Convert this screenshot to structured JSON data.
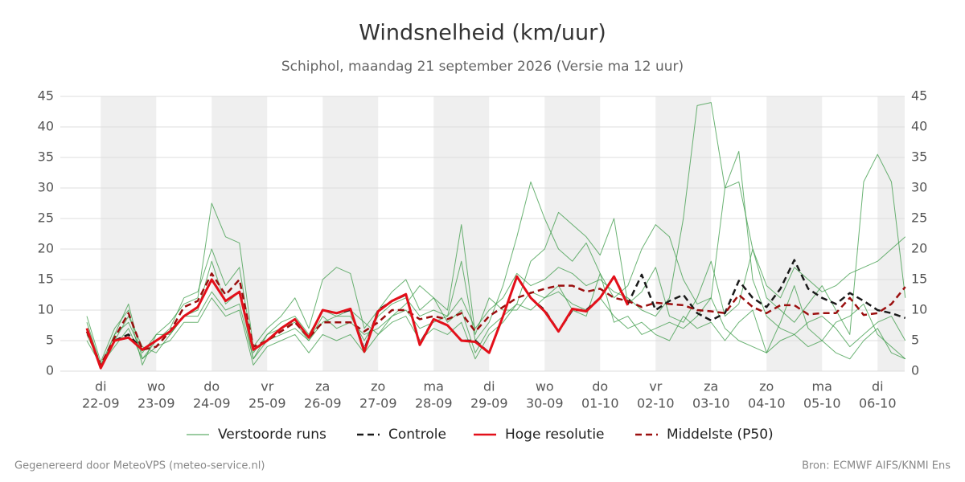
{
  "chart_data": {
    "type": "line",
    "title": "Windsnelheid (km/uur)",
    "subtitle": "Schiphol, maandag 21 september 2026 (Versie ma 12 uur)",
    "footer_left": "Gegenereerd door MeteoVPS (meteo-service.nl)",
    "footer_right": "Bron: ECMWF AIFS/KNMI Ens",
    "categories": [
      null,
      "22-09",
      null,
      null,
      null,
      "23-09",
      null,
      null,
      null,
      "24-09",
      null,
      null,
      null,
      "25-09",
      null,
      null,
      null,
      "26-09",
      null,
      null,
      null,
      "27-09",
      null,
      null,
      null,
      "28-09",
      null,
      null,
      null,
      "29-09",
      null,
      null,
      null,
      "30-09",
      null,
      null,
      null,
      "01-10",
      null,
      null,
      null,
      "02-10",
      null,
      null,
      null,
      "03-10",
      null,
      null,
      null,
      "04-10",
      null,
      null,
      null,
      "05-10",
      null,
      null,
      null,
      "06-10",
      null,
      null
    ],
    "weekdays": [
      null,
      "di",
      null,
      null,
      null,
      "wo",
      null,
      null,
      null,
      "do",
      null,
      null,
      null,
      "vr",
      null,
      null,
      null,
      "za",
      null,
      null,
      null,
      "zo",
      null,
      null,
      null,
      "ma",
      null,
      null,
      null,
      "di",
      null,
      null,
      null,
      "wo",
      null,
      null,
      null,
      "do",
      null,
      null,
      null,
      "vr",
      null,
      null,
      null,
      "za",
      null,
      null,
      null,
      "zo",
      null,
      null,
      null,
      "ma",
      null,
      null,
      null,
      "di",
      null,
      null
    ],
    "ylim": [
      0,
      45
    ],
    "yticks": [
      0,
      5,
      10,
      15,
      20,
      25,
      30,
      35,
      40,
      45
    ],
    "grid": true,
    "ensemble": {
      "name": "Verstoorde runs",
      "color": "#3a9a45",
      "members": [
        [
          8,
          1,
          6,
          11,
          2,
          5,
          7,
          12,
          13,
          20,
          14,
          17,
          3,
          6,
          8,
          9,
          6,
          10,
          9,
          9,
          5,
          9,
          11,
          12,
          9,
          10,
          9,
          12,
          7,
          10,
          12,
          16,
          14,
          15,
          17,
          16,
          14,
          15,
          13,
          12,
          10,
          9,
          12,
          25,
          43.5,
          44,
          30,
          31,
          20,
          14,
          12,
          17,
          15,
          13,
          14,
          16,
          17,
          18,
          20,
          22
        ],
        [
          6,
          1,
          5,
          9,
          4,
          3,
          6,
          9,
          10,
          18,
          11,
          13,
          2,
          5,
          6,
          7,
          5,
          9,
          7,
          8,
          6,
          7,
          9,
          10,
          7,
          8,
          9,
          18,
          5,
          8,
          14,
          22,
          31,
          25,
          20,
          18,
          21,
          16,
          12,
          14,
          20,
          24,
          22,
          15,
          11,
          12,
          7,
          5,
          4,
          3,
          8,
          14,
          7,
          5,
          8,
          9,
          11,
          6,
          4,
          2
        ],
        [
          7,
          0.5,
          6,
          8,
          3,
          6,
          8,
          11,
          12,
          27.5,
          22,
          21,
          4,
          7,
          9,
          12,
          7,
          15,
          17,
          16,
          7,
          10,
          13,
          15,
          10,
          12,
          8,
          10,
          3,
          7,
          9,
          11,
          18,
          20,
          26,
          24,
          22,
          19,
          25,
          11,
          13,
          17,
          9,
          8,
          12,
          18,
          9,
          11,
          20,
          12,
          10,
          8,
          11,
          14,
          10,
          6,
          31,
          35.5,
          31,
          12
        ],
        [
          9,
          1.5,
          7,
          10,
          1,
          6,
          6,
          9,
          9,
          13,
          10,
          11,
          2,
          6,
          7,
          8,
          5,
          8,
          9,
          10,
          8,
          6,
          9,
          11,
          14,
          12,
          10,
          24,
          6,
          12,
          10,
          10,
          13,
          12,
          14,
          10,
          9,
          16,
          8,
          9,
          6,
          7,
          8,
          7,
          9,
          12,
          30,
          36,
          15,
          9,
          7,
          6,
          8,
          9,
          7,
          4,
          6,
          8,
          9,
          5
        ],
        [
          5,
          1,
          4,
          7,
          2,
          4,
          5,
          8,
          8,
          12,
          9,
          10,
          1,
          4,
          5,
          6,
          3,
          6,
          5,
          6,
          3,
          6,
          8,
          9,
          5,
          7,
          6,
          8,
          2,
          6,
          8,
          11,
          10,
          12,
          13,
          11,
          10,
          12,
          9,
          7,
          8,
          6,
          5,
          9,
          7,
          8,
          5,
          8,
          10,
          3,
          5,
          6,
          4,
          5,
          3,
          2,
          5,
          7,
          3,
          2
        ]
      ]
    },
    "series": [
      {
        "name": "Controle",
        "color": "#1a1a1a",
        "dash": "dashed",
        "values": [
          7,
          0.5,
          5,
          6,
          3.5,
          5,
          6.5,
          9,
          10.5,
          15,
          11.5,
          13,
          3.5,
          5,
          7,
          8.5,
          5.5,
          10,
          9.5,
          10,
          3.5,
          10,
          11.5,
          12.5,
          4.5,
          8.5,
          7.5,
          5,
          5,
          3,
          9,
          15.5,
          12,
          10,
          6.5,
          10,
          10,
          12,
          15.5,
          11,
          15.8,
          10,
          11.5,
          12.5,
          9.5,
          8.3,
          9.5,
          14.8,
          12,
          10.5,
          13.5,
          18.2,
          13.5,
          12,
          11,
          12.8,
          11.5,
          10,
          9.5,
          8.7
        ]
      },
      {
        "name": "Hoge resolutie",
        "color": "#e3101a",
        "dash": "solid",
        "values": [
          7,
          0.5,
          5,
          5.5,
          3.5,
          5,
          6.5,
          9,
          10.5,
          15,
          11.5,
          13,
          3.5,
          5,
          7,
          8.5,
          5.5,
          10,
          9.5,
          10.2,
          3.2,
          9.8,
          11.5,
          12.6,
          4.3,
          8.5,
          7.5,
          5,
          4.8,
          3,
          9,
          15.5,
          12,
          9.8,
          6.5,
          10.2,
          9.8,
          12,
          15.5,
          10.8,
          null,
          null,
          null,
          null,
          null,
          null,
          null,
          null,
          null,
          null,
          null,
          null,
          null,
          null,
          null,
          null,
          null,
          null,
          null,
          null
        ]
      },
      {
        "name": "Middelste (P50)",
        "color": "#9b0f0f",
        "dash": "dashed",
        "values": [
          6.5,
          1,
          5.5,
          9.5,
          3.5,
          4,
          6.5,
          10.5,
          11.5,
          16,
          12.5,
          15,
          4,
          5,
          6.5,
          8,
          5.5,
          8,
          8,
          8,
          6.5,
          8,
          10,
          10,
          8.5,
          9,
          8.5,
          9.5,
          6.5,
          9,
          10.5,
          12,
          12.8,
          13.5,
          14,
          14,
          13,
          13.5,
          12,
          11.5,
          10.5,
          11.2,
          11,
          10.8,
          10,
          9.8,
          9.5,
          12.5,
          10.5,
          9.5,
          10.8,
          10.8,
          9.3,
          9.5,
          9.5,
          12,
          9.2,
          9.5,
          11,
          13.8
        ]
      }
    ]
  }
}
